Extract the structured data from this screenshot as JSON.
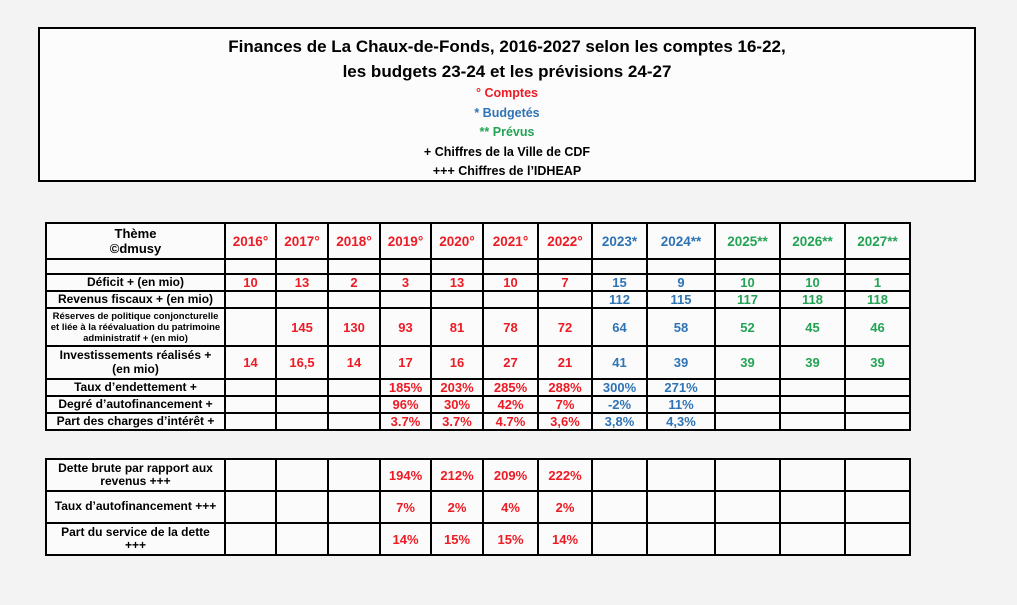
{
  "colors": {
    "red": "#ed1b24",
    "blue": "#2e74b5",
    "green": "#23a455",
    "black": "#000000"
  },
  "title_box": {
    "line1": "Finances de La Chaux-de-Fonds, 2016-2027 selon les comptes 16-22,",
    "line2": "les budgets 23-24 et les prévisions 24-27",
    "legend": [
      {
        "text": "° Comptes",
        "color": "red"
      },
      {
        "text": "* Budgetés",
        "color": "blue"
      },
      {
        "text": "** Prévus",
        "color": "green"
      },
      {
        "text": "+ Chiffres de la Ville de CDF",
        "color": "black"
      },
      {
        "text": "+++ Chiffres de l’IDHEAP",
        "color": "black"
      }
    ]
  },
  "table": {
    "theme": {
      "line1": "Thème",
      "line2": "©dmusy"
    },
    "columns": [
      {
        "label": "2016°",
        "color": "red"
      },
      {
        "label": "2017°",
        "color": "red"
      },
      {
        "label": "2018°",
        "color": "red"
      },
      {
        "label": "2019°",
        "color": "red"
      },
      {
        "label": "2020°",
        "color": "red"
      },
      {
        "label": "2021°",
        "color": "red"
      },
      {
        "label": "2022°",
        "color": "red"
      },
      {
        "label": "2023*",
        "color": "blue"
      },
      {
        "label": "2024**",
        "color": "blue"
      },
      {
        "label": "2025**",
        "color": "green"
      },
      {
        "label": "2026**",
        "color": "green"
      },
      {
        "label": "2027**",
        "color": "green"
      }
    ],
    "rows": [
      {
        "label": "",
        "cells": [
          "",
          "",
          "",
          "",
          "",
          "",
          "",
          "",
          "",
          "",
          "",
          ""
        ]
      },
      {
        "label": "Déficit + (en mio)",
        "cells": [
          "10",
          "13",
          "2",
          "3",
          "13",
          "10",
          "7",
          "15",
          "9",
          "10",
          "10",
          "1"
        ]
      },
      {
        "label": "Revenus fiscaux + (en mio)",
        "cells": [
          "",
          "",
          "",
          "",
          "",
          "",
          "",
          "112",
          "115",
          "117",
          "118",
          "118"
        ]
      },
      {
        "label": "Réserves de politique conjoncturelle et liée à la réévaluation du patrimoine administratif + (en mio)",
        "cells": [
          "",
          "145",
          "130",
          "93",
          "81",
          "78",
          "72",
          "64",
          "58",
          "52",
          "45",
          "46"
        ]
      },
      {
        "label": "Investissements réalisés + (en mio)",
        "cells": [
          "14",
          "16,5",
          "14",
          "17",
          "16",
          "27",
          "21",
          "41",
          "39",
          "39",
          "39",
          "39"
        ]
      },
      {
        "label": "Taux d’endettement +",
        "cells": [
          "",
          "",
          "",
          "185%",
          "203%",
          "285%",
          "288%",
          "300%",
          "271%",
          "",
          "",
          ""
        ]
      },
      {
        "label": "Degré d’autofinancement +",
        "cells": [
          "",
          "",
          "",
          "96%",
          "30%",
          "42%",
          "7%",
          "-2%",
          "11%",
          "",
          "",
          ""
        ]
      },
      {
        "label": "Part des charges d’intérêt +",
        "cells": [
          "",
          "",
          "",
          "3.7%",
          "3.7%",
          "4.7%",
          "3,6%",
          "3,8%",
          "4,3%",
          "",
          "",
          ""
        ]
      },
      {
        "label": "Dette brute par rapport aux revenus +++",
        "cells": [
          "",
          "",
          "",
          "194%",
          "212%",
          "209%",
          "222%",
          "",
          "",
          "",
          "",
          ""
        ]
      },
      {
        "label": "Taux d’autofinancement +++",
        "cells": [
          "",
          "",
          "",
          "7%",
          "2%",
          "4%",
          "2%",
          "",
          "",
          "",
          "",
          ""
        ]
      },
      {
        "label": "Part du service de la dette +++",
        "cells": [
          "",
          "",
          "",
          "14%",
          "15%",
          "15%",
          "14%",
          "",
          "",
          "",
          "",
          ""
        ]
      }
    ]
  }
}
